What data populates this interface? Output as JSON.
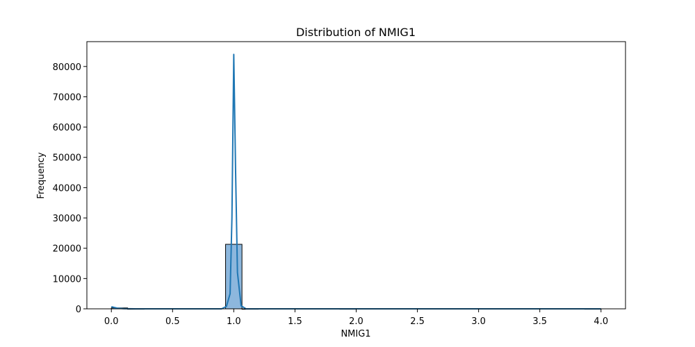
{
  "chart_data": {
    "type": "bar",
    "title": "Distribution of NMIG1",
    "xlabel": "NMIG1",
    "ylabel": "Frequency",
    "xlim": [
      -0.2,
      4.2
    ],
    "ylim": [
      0,
      88200
    ],
    "xticks": [
      "0.0",
      "0.5",
      "1.0",
      "1.5",
      "2.0",
      "2.5",
      "3.0",
      "3.5",
      "4.0"
    ],
    "yticks": [
      "0",
      "10000",
      "20000",
      "30000",
      "40000",
      "50000",
      "60000",
      "70000",
      "80000"
    ],
    "grid": false,
    "bins": [
      {
        "x0": 0.0,
        "x1": 0.133,
        "count": 300
      },
      {
        "x0": 0.133,
        "x1": 0.267,
        "count": 0
      },
      {
        "x0": 0.933,
        "x1": 1.067,
        "count": 21300
      },
      {
        "x0": 1.067,
        "x1": 1.2,
        "count": 0
      },
      {
        "x0": 1.867,
        "x1": 2.0,
        "count": 0
      },
      {
        "x0": 3.867,
        "x1": 4.0,
        "count": 0
      }
    ],
    "kde": {
      "x": [
        0.0,
        0.02,
        0.05,
        0.1,
        0.15,
        0.2,
        0.5,
        0.9,
        0.94,
        0.97,
        0.985,
        1.0,
        1.015,
        1.03,
        1.06,
        1.1,
        1.5,
        2.0,
        3.0,
        4.0
      ],
      "y": [
        700,
        500,
        200,
        60,
        20,
        0,
        0,
        0,
        800,
        5000,
        30000,
        84000,
        45000,
        12000,
        1000,
        0,
        0,
        0,
        0,
        0
      ]
    },
    "colors": {
      "bar_fill": "#8db7dd",
      "bar_edge": "#000000",
      "kde_line": "#1f77b4"
    }
  }
}
